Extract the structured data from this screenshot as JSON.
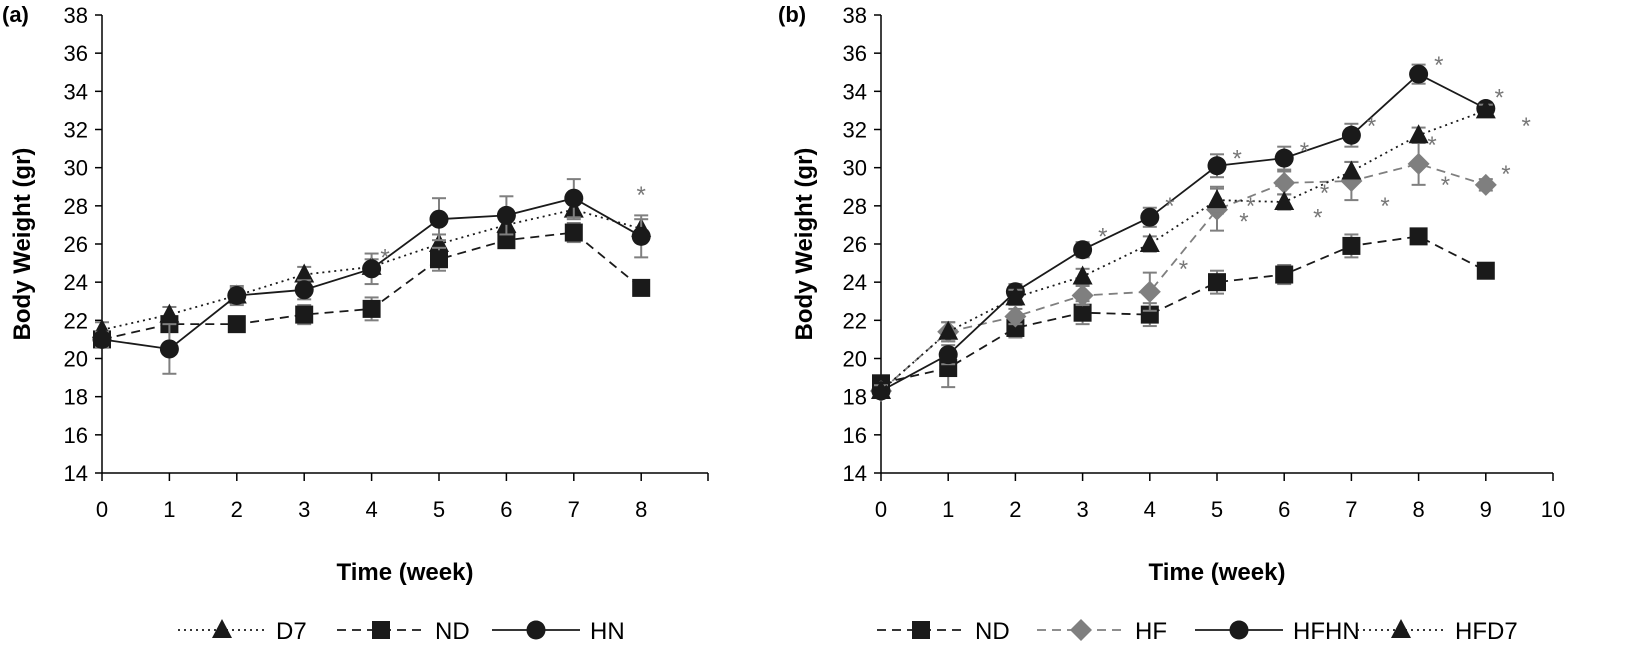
{
  "chart_data": [
    {
      "panel": "(a)",
      "type": "line",
      "xlabel": "Time (week)",
      "ylabel": "Body Weight (gr)",
      "xlim": [
        0,
        9
      ],
      "ylim": [
        14,
        38
      ],
      "xticks": [
        "0",
        "1",
        "2",
        "3",
        "4",
        "5",
        "6",
        "7",
        "8"
      ],
      "yticks": [
        "14",
        "16",
        "18",
        "20",
        "22",
        "24",
        "26",
        "28",
        "30",
        "32",
        "34",
        "36",
        "38"
      ],
      "series": [
        {
          "name": "D7",
          "style": "dotted",
          "marker": "triangle",
          "color": "#1a1a1a",
          "x": [
            0,
            1,
            2,
            3,
            4,
            5,
            6,
            7,
            8
          ],
          "y": [
            21.5,
            22.3,
            23.3,
            24.4,
            24.8,
            26.0,
            27.0,
            27.8,
            26.8
          ],
          "err": [
            0.4,
            0.4,
            0.4,
            0.4,
            0.4,
            0.5,
            0.5,
            0.5,
            0.5
          ]
        },
        {
          "name": "ND",
          "style": "dashed",
          "marker": "square",
          "color": "#1a1a1a",
          "x": [
            0,
            1,
            2,
            3,
            4,
            5,
            6,
            7,
            8
          ],
          "y": [
            21.0,
            21.8,
            21.8,
            22.3,
            22.6,
            25.2,
            26.2,
            26.6,
            23.7
          ],
          "err": [
            0.3,
            0.4,
            0.4,
            0.5,
            0.6,
            0.6,
            0.4,
            0.5,
            0.3
          ]
        },
        {
          "name": "HN",
          "style": "solid",
          "marker": "circle",
          "color": "#1a1a1a",
          "x": [
            0,
            1,
            2,
            3,
            4,
            5,
            6,
            7,
            8
          ],
          "y": [
            21.0,
            20.5,
            23.3,
            23.6,
            24.7,
            27.3,
            27.5,
            28.4,
            26.4
          ],
          "err": [
            0.4,
            1.3,
            0.5,
            0.5,
            0.8,
            1.1,
            1.0,
            1.0,
            1.1
          ]
        }
      ],
      "annotations": [
        {
          "text": "*",
          "x": 4.2,
          "y": 25.7
        },
        {
          "text": "*",
          "x": 8.0,
          "y": 29.0
        }
      ],
      "legend": {
        "position": "bottom",
        "order": [
          "D7",
          "ND",
          "HN"
        ]
      }
    },
    {
      "panel": "(b)",
      "type": "line",
      "xlabel": "Time (week)",
      "ylabel": "Body Weight (gr)",
      "xlim": [
        0,
        10
      ],
      "ylim": [
        14,
        38
      ],
      "xticks": [
        "0",
        "1",
        "2",
        "3",
        "4",
        "5",
        "6",
        "7",
        "8",
        "9",
        "10"
      ],
      "yticks": [
        "14",
        "16",
        "18",
        "20",
        "22",
        "24",
        "26",
        "28",
        "30",
        "32",
        "34",
        "36",
        "38"
      ],
      "series": [
        {
          "name": "ND",
          "style": "dashed",
          "marker": "square",
          "color": "#1a1a1a",
          "x": [
            0,
            1,
            2,
            3,
            4,
            5,
            6,
            7,
            8,
            9
          ],
          "y": [
            18.7,
            19.5,
            21.6,
            22.4,
            22.3,
            24.0,
            24.4,
            25.9,
            26.4,
            24.6
          ],
          "err": [
            0.3,
            1.0,
            0.5,
            0.6,
            0.6,
            0.6,
            0.5,
            0.6,
            0.3,
            0.3
          ]
        },
        {
          "name": "HF",
          "style": "dashed",
          "marker": "diamond",
          "color": "#7f7f7f",
          "x": [
            0,
            1,
            2,
            3,
            4,
            5,
            6,
            7,
            8,
            9
          ],
          "y": [
            18.3,
            21.4,
            22.2,
            23.3,
            23.5,
            27.8,
            29.2,
            29.3,
            30.2,
            29.1
          ],
          "err": [
            0.3,
            0.5,
            0.4,
            0.5,
            1.0,
            1.1,
            0.6,
            1.0,
            1.1,
            0.3
          ]
        },
        {
          "name": "HFHN",
          "style": "solid",
          "marker": "circle",
          "color": "#1a1a1a",
          "x": [
            0,
            1,
            2,
            3,
            4,
            5,
            6,
            7,
            8,
            9
          ],
          "y": [
            18.3,
            20.2,
            23.5,
            25.7,
            27.4,
            30.1,
            30.5,
            31.7,
            34.9,
            33.1
          ],
          "err": [
            0.3,
            0.5,
            0.4,
            0.4,
            0.5,
            0.6,
            0.6,
            0.6,
            0.5,
            0.3
          ]
        },
        {
          "name": "HFD7",
          "style": "dotted",
          "marker": "triangle",
          "color": "#1a1a1a",
          "x": [
            0,
            1,
            2,
            3,
            4,
            5,
            6,
            7,
            8,
            9
          ],
          "y": [
            18.3,
            21.4,
            23.2,
            24.3,
            26.0,
            28.3,
            28.2,
            29.8,
            31.7,
            33.0
          ],
          "err": [
            0.3,
            0.5,
            0.4,
            0.4,
            0.4,
            0.7,
            0.4,
            0.5,
            0.4,
            0.3
          ]
        }
      ],
      "annotations": [
        {
          "text": "*",
          "x": 3.3,
          "y": 26.8
        },
        {
          "text": "*",
          "x": 4.3,
          "y": 28.4
        },
        {
          "text": "*",
          "x": 5.3,
          "y": 30.9
        },
        {
          "text": "*",
          "x": 6.3,
          "y": 31.3
        },
        {
          "text": "*",
          "x": 7.3,
          "y": 32.6
        },
        {
          "text": "*",
          "x": 8.3,
          "y": 35.8
        },
        {
          "text": "*",
          "x": 9.2,
          "y": 34.1
        },
        {
          "text": "*",
          "x": 9.6,
          "y": 32.6
        },
        {
          "text": "*",
          "x": 4.5,
          "y": 25.1
        },
        {
          "text": "*",
          "x": 5.5,
          "y": 28.4
        },
        {
          "text": "*",
          "x": 6.6,
          "y": 29.1
        },
        {
          "text": "*",
          "x": 7.5,
          "y": 28.4
        },
        {
          "text": "*",
          "x": 8.4,
          "y": 29.5
        },
        {
          "text": "*",
          "x": 9.3,
          "y": 30.1
        },
        {
          "text": "*",
          "x": 5.4,
          "y": 27.6
        },
        {
          "text": "*",
          "x": 6.5,
          "y": 27.8
        },
        {
          "text": "*",
          "x": 8.2,
          "y": 31.6
        }
      ],
      "legend": {
        "position": "bottom",
        "order": [
          "ND",
          "HF",
          "HFHN",
          "HFD7"
        ]
      }
    }
  ]
}
